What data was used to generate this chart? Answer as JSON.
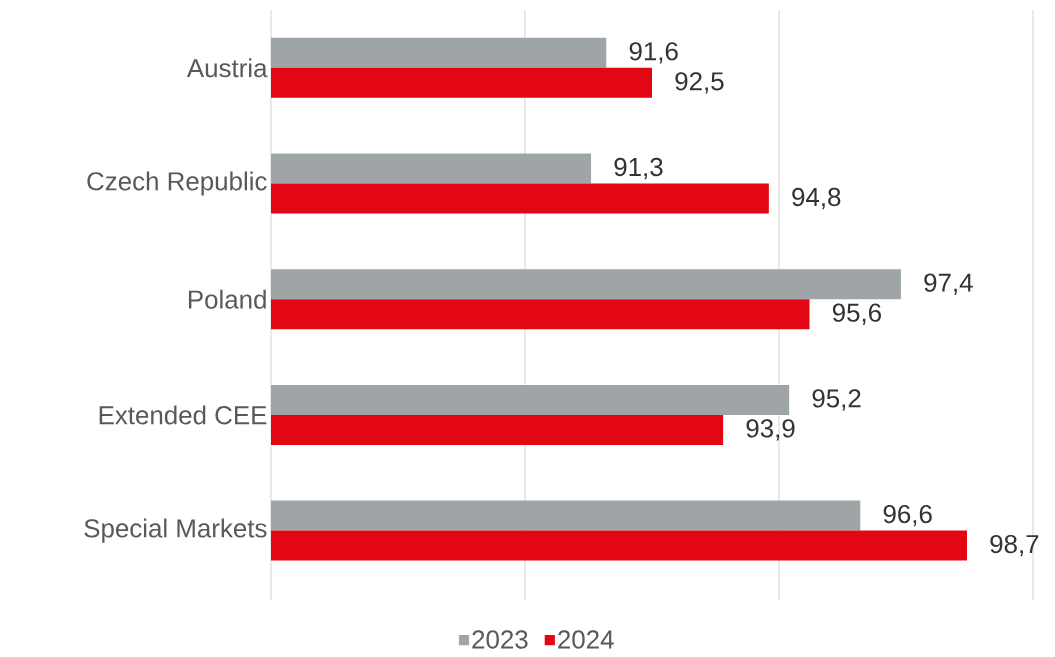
{
  "chart_data": {
    "type": "bar",
    "orientation": "horizontal",
    "categories": [
      "Austria",
      "Czech Republic",
      "Poland",
      "Extended CEE",
      "Special Markets"
    ],
    "series": [
      {
        "name": "2023",
        "color": "#9fa4a7",
        "values": [
          91.6,
          91.3,
          97.4,
          95.2,
          96.6
        ],
        "value_labels": [
          "91,6",
          "91,3",
          "97,4",
          "95,2",
          "96,6"
        ]
      },
      {
        "name": "2024",
        "color": "#e30613",
        "values": [
          92.5,
          94.8,
          95.6,
          93.9,
          98.7
        ],
        "value_labels": [
          "92,5",
          "94,8",
          "95,6",
          "93,9",
          "98,7"
        ]
      }
    ],
    "xlim": [
      85,
      100
    ],
    "xticks": [
      {
        "value": 85,
        "label": null
      },
      {
        "value": 90,
        "label": null
      },
      {
        "value": 95,
        "label": null
      },
      {
        "value": 100,
        "label": null
      }
    ],
    "grid": "x",
    "legend": "bottom",
    "tick_labels": "y"
  }
}
